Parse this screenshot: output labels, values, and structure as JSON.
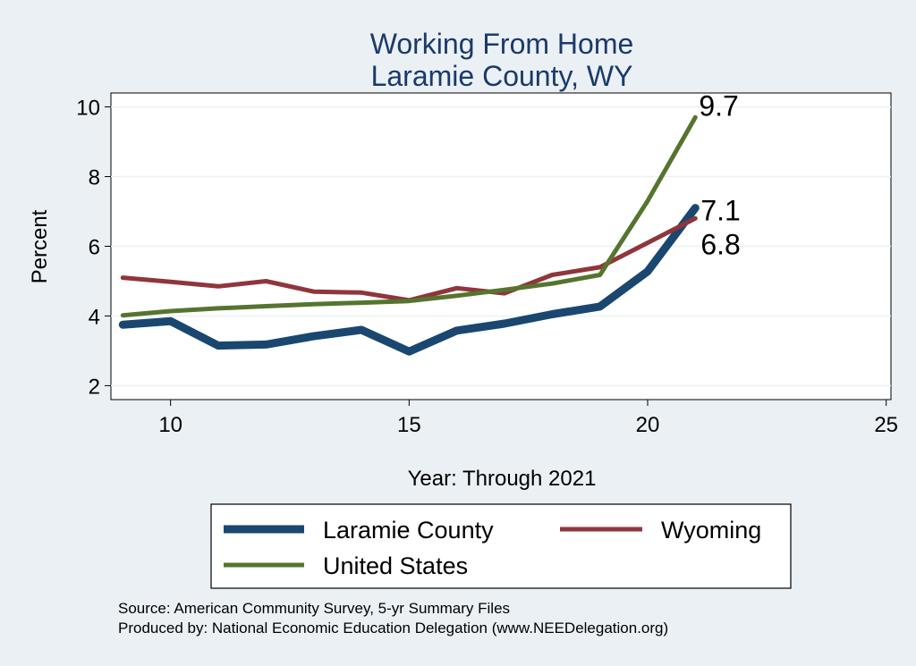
{
  "chart_data": {
    "type": "line",
    "title": [
      "Working From Home",
      "Laramie County, WY"
    ],
    "xlabel": "Year: Through 2021",
    "ylabel": "Percent",
    "xlim": [
      8.75,
      25.1
    ],
    "ylim": [
      1.6,
      10.4
    ],
    "xticks": [
      10,
      15,
      20,
      25
    ],
    "yticks": [
      2,
      4,
      6,
      8,
      10
    ],
    "grid": true,
    "legend_position": "bottom",
    "series": [
      {
        "name": "Laramie County",
        "color": "#1a476f",
        "width": "thick",
        "x": [
          9,
          10,
          11,
          12,
          13,
          14,
          15,
          16,
          17,
          18,
          19,
          20,
          21
        ],
        "y": [
          3.75,
          3.85,
          3.15,
          3.18,
          3.42,
          3.6,
          2.98,
          3.58,
          3.78,
          4.05,
          4.27,
          5.28,
          7.1
        ]
      },
      {
        "name": "Wyoming",
        "color": "#90353b",
        "width": "medium",
        "x": [
          9,
          10,
          11,
          12,
          13,
          14,
          15,
          16,
          17,
          18,
          19,
          20,
          21
        ],
        "y": [
          5.1,
          4.98,
          4.85,
          5.0,
          4.7,
          4.67,
          4.45,
          4.8,
          4.65,
          5.18,
          5.4,
          6.1,
          6.8
        ]
      },
      {
        "name": "United States",
        "color": "#55752f",
        "width": "medium",
        "x": [
          9,
          10,
          11,
          12,
          13,
          14,
          15,
          16,
          17,
          18,
          19,
          20,
          21
        ],
        "y": [
          4.02,
          4.14,
          4.22,
          4.28,
          4.34,
          4.38,
          4.43,
          4.58,
          4.75,
          4.93,
          5.18,
          7.3,
          9.7
        ]
      }
    ],
    "end_labels": [
      {
        "text": "9.7",
        "x": 21,
        "y": 9.7
      },
      {
        "text": "7.1",
        "x": 21,
        "y": 7.1
      },
      {
        "text": "6.8",
        "x": 21,
        "y": 6.8
      }
    ]
  },
  "notes": [
    "Source: American Community Survey, 5-yr Summary Files",
    "Produced by: National Economic Education Delegation (www.NEEDelegation.org)"
  ]
}
